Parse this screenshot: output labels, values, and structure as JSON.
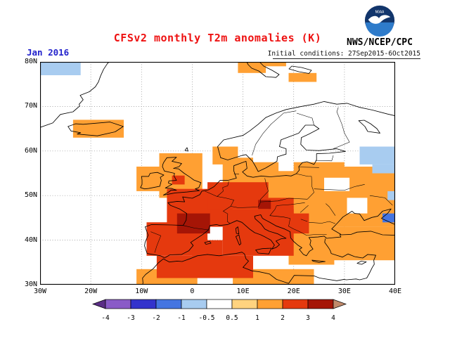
{
  "header": {
    "date_label": "Jan 2016",
    "title": "CFSv2 monthly T2m anomalies (K)",
    "agency": "NWS/NCEP/CPC",
    "initial_conditions": "Initial conditions: 27Sep2015-6Oct2015",
    "logo_text": "NOAA"
  },
  "colors": {
    "title": "#ee1111",
    "date_label": "#2222cc",
    "logo_navy": "#12356b",
    "logo_light_blue": "#2e7bca"
  },
  "map": {
    "lon_range": [
      -30,
      40
    ],
    "lat_range": [
      30,
      80
    ],
    "lat_ticks": [
      "80N",
      "70N",
      "60N",
      "50N",
      "40N",
      "30N"
    ],
    "lon_ticks": [
      "30W",
      "20W",
      "10W",
      "0",
      "10E",
      "20E",
      "30E",
      "40E"
    ],
    "palette": {
      "-2": "#4575e1",
      "-1": "#a8ccf0",
      "0": "#ffffff",
      "1": "#ffd37f",
      "2": "#ffa033",
      "3": "#e5390e",
      "4": "#a51506"
    },
    "cells": [
      [
        -23.5,
        63,
        -13.5,
        67,
        "2"
      ],
      [
        -11,
        51,
        -5,
        56.5,
        "2"
      ],
      [
        -6.5,
        49.5,
        2,
        59.5,
        "2"
      ],
      [
        4,
        57,
        9,
        61,
        "2"
      ],
      [
        6,
        52,
        12,
        58.5,
        "2"
      ],
      [
        11,
        54,
        17,
        57.5,
        "2"
      ],
      [
        8,
        44,
        26,
        55.5,
        "2"
      ],
      [
        20,
        54,
        30,
        57.5,
        "2"
      ],
      [
        24,
        43,
        40,
        56.5,
        "2"
      ],
      [
        19,
        34.5,
        28,
        46,
        "2"
      ],
      [
        26,
        35.5,
        40,
        43,
        "2"
      ],
      [
        8,
        30,
        24,
        33.5,
        "2"
      ],
      [
        -11,
        30,
        1,
        33.5,
        "2"
      ],
      [
        9,
        77.5,
        14.5,
        80,
        "2"
      ],
      [
        14.5,
        79,
        18.5,
        80,
        "2"
      ],
      [
        19,
        75.5,
        24.5,
        77.5,
        "2"
      ],
      [
        26,
        51,
        31,
        54,
        "0"
      ],
      [
        30.5,
        46,
        34.5,
        49.5,
        "0"
      ],
      [
        -9,
        36.5,
        3,
        44,
        "3"
      ],
      [
        -5,
        43,
        8,
        51.5,
        "3"
      ],
      [
        3,
        47,
        15,
        53,
        "3"
      ],
      [
        6,
        36.5,
        20,
        47,
        "3"
      ],
      [
        0,
        35.5,
        6,
        40,
        "3"
      ],
      [
        17,
        41.5,
        23,
        46,
        "3"
      ],
      [
        -7,
        31.5,
        12,
        36.5,
        "3"
      ],
      [
        -4,
        52.5,
        -1.5,
        54.5,
        "3"
      ],
      [
        15,
        45.5,
        20,
        49.5,
        "3"
      ],
      [
        -3,
        41.5,
        3.5,
        46,
        "4"
      ],
      [
        13,
        47,
        15.5,
        49,
        "4"
      ],
      [
        -30,
        77,
        -22,
        80,
        "-1"
      ],
      [
        33,
        57,
        40,
        61,
        "-1"
      ],
      [
        35.5,
        55,
        40,
        57,
        "-1"
      ],
      [
        38.5,
        49,
        40,
        51,
        "-1"
      ],
      [
        37.5,
        44,
        40,
        46,
        "-2"
      ]
    ]
  },
  "legend": {
    "labels": [
      "-4",
      "-3",
      "-2",
      "-1",
      "-0.5",
      "0.5",
      "1",
      "2",
      "3",
      "4"
    ],
    "segment_colors": [
      "#8a5bc7",
      "#3333cc",
      "#4575e1",
      "#a8ccf0",
      "#ffffff",
      "#ffd37f",
      "#ffa033",
      "#e5390e",
      "#a51506"
    ],
    "arrow_left_color": "#5b2d86",
    "arrow_right_color": "#c08a6b"
  }
}
